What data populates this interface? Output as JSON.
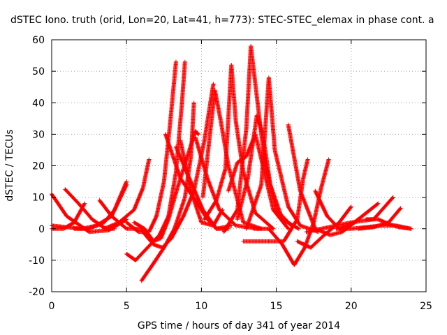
{
  "chart_data": {
    "type": "scatter",
    "title": "dSTEC Iono. truth (orid, Lon=20, Lat=41, h=773): STEC-STEC_elemax in phase cont. a",
    "xlabel": "GPS time / hours of day 341 of year 2014",
    "ylabel": "dSTEC  / TECUs",
    "xlim": [
      0,
      25
    ],
    "ylim": [
      -20,
      60
    ],
    "x_ticks": [
      0,
      5,
      10,
      15,
      20,
      25
    ],
    "x_tick_labels": [
      "0",
      "5",
      "10",
      "15",
      "20",
      "25"
    ],
    "y_ticks": [
      -20,
      -10,
      0,
      10,
      20,
      30,
      40,
      50,
      60
    ],
    "y_tick_labels": [
      "-20",
      "-10",
      "0",
      "10",
      "20",
      "30",
      "40",
      "50",
      "60"
    ],
    "grid": true,
    "marker": "+",
    "series_color": "#ff0000",
    "arcs": [
      {
        "values": [
          [
            0.0,
            11
          ],
          [
            1.0,
            4
          ],
          [
            2.5,
            -1
          ],
          [
            3.8,
            -0.5
          ],
          [
            5.0,
            3
          ]
        ]
      },
      {
        "values": [
          [
            0.0,
            0
          ],
          [
            0.8,
            0
          ],
          [
            1.5,
            2
          ],
          [
            2.2,
            8
          ]
        ]
      },
      {
        "values": [
          [
            0.0,
            1
          ],
          [
            1.0,
            0.5
          ],
          [
            2.0,
            0
          ],
          [
            3.0,
            1
          ],
          [
            4.0,
            4
          ],
          [
            5.0,
            14
          ]
        ]
      },
      {
        "values": [
          [
            0.9,
            12.5
          ],
          [
            1.8,
            8
          ],
          [
            2.7,
            3
          ],
          [
            3.6,
            0
          ],
          [
            4.2,
            0
          ]
        ]
      },
      {
        "values": [
          [
            1.5,
            0
          ],
          [
            2.5,
            0
          ],
          [
            3.5,
            2
          ],
          [
            4.2,
            6
          ],
          [
            5.0,
            15
          ]
        ]
      },
      {
        "values": [
          [
            3.2,
            9
          ],
          [
            4.0,
            4
          ],
          [
            5.0,
            0
          ],
          [
            6.0,
            0
          ]
        ]
      },
      {
        "values": [
          [
            3.5,
            0
          ],
          [
            4.5,
            2
          ],
          [
            5.5,
            6
          ],
          [
            6.1,
            13
          ],
          [
            6.5,
            22
          ]
        ]
      },
      {
        "values": [
          [
            5.0,
            -8
          ],
          [
            5.6,
            -10
          ],
          [
            6.4,
            -6
          ],
          [
            7.2,
            -2
          ],
          [
            7.8,
            4
          ],
          [
            8.3,
            18
          ],
          [
            8.7,
            40
          ],
          [
            8.9,
            53
          ]
        ]
      },
      {
        "values": [
          [
            6.0,
            -16.5
          ],
          [
            6.8,
            -11
          ],
          [
            7.5,
            -6
          ],
          [
            8.2,
            0
          ],
          [
            8.9,
            10
          ],
          [
            9.3,
            23
          ],
          [
            9.5,
            40
          ]
        ]
      },
      {
        "values": [
          [
            5.0,
            2
          ],
          [
            5.8,
            -1
          ],
          [
            6.5,
            -1
          ],
          [
            7.0,
            4
          ],
          [
            7.5,
            15
          ],
          [
            7.9,
            33
          ],
          [
            8.3,
            53
          ]
        ]
      },
      {
        "values": [
          [
            5.5,
            2
          ],
          [
            6.2,
            0
          ],
          [
            6.8,
            -4
          ],
          [
            7.3,
            -3
          ],
          [
            7.8,
            3
          ],
          [
            8.4,
            13
          ],
          [
            9.0,
            22
          ],
          [
            9.6,
            31
          ],
          [
            9.8,
            30
          ]
        ]
      },
      {
        "values": [
          [
            6.0,
            -0.5
          ],
          [
            6.8,
            -5
          ],
          [
            7.4,
            -6
          ],
          [
            8.0,
            -3
          ],
          [
            8.8,
            4
          ],
          [
            9.5,
            12
          ],
          [
            10.2,
            28
          ],
          [
            10.8,
            46
          ]
        ]
      },
      {
        "values": [
          [
            8.6,
            28
          ],
          [
            9.3,
            12
          ],
          [
            10.0,
            2
          ],
          [
            10.8,
            1
          ],
          [
            11.4,
            6
          ]
        ]
      },
      {
        "values": [
          [
            7.6,
            30
          ],
          [
            8.6,
            16
          ],
          [
            9.6,
            9
          ],
          [
            10.4,
            3
          ],
          [
            11.0,
            0
          ],
          [
            11.8,
            0
          ]
        ]
      },
      {
        "values": [
          [
            8.3,
            26
          ],
          [
            9.2,
            16
          ],
          [
            10.1,
            6
          ],
          [
            11.0,
            0
          ],
          [
            12.0,
            1
          ]
        ]
      },
      {
        "values": [
          [
            9.6,
            29
          ],
          [
            10.4,
            16
          ],
          [
            11.2,
            6
          ],
          [
            12.3,
            1
          ],
          [
            13.8,
            0
          ]
        ]
      },
      {
        "values": [
          [
            10.1,
            10
          ],
          [
            10.5,
            27
          ],
          [
            10.9,
            44
          ],
          [
            11.3,
            34
          ],
          [
            11.8,
            20
          ],
          [
            12.8,
            2
          ],
          [
            14.0,
            0
          ]
        ]
      },
      {
        "values": [
          [
            10.2,
            3
          ],
          [
            11.0,
            9
          ],
          [
            11.6,
            19
          ],
          [
            12.0,
            52
          ],
          [
            12.3,
            34
          ],
          [
            12.8,
            18
          ],
          [
            13.6,
            5
          ],
          [
            14.8,
            0
          ]
        ]
      },
      {
        "values": [
          [
            11.5,
            -1
          ],
          [
            12.4,
            6
          ],
          [
            13.0,
            32
          ],
          [
            13.3,
            58
          ],
          [
            13.7,
            42
          ],
          [
            14.2,
            22
          ],
          [
            15.0,
            6
          ],
          [
            16.0,
            1
          ]
        ]
      },
      {
        "values": [
          [
            11.8,
            12
          ],
          [
            12.4,
            21
          ],
          [
            13.0,
            23
          ],
          [
            13.6,
            30
          ],
          [
            14.2,
            18
          ],
          [
            14.8,
            6
          ],
          [
            15.8,
            0
          ]
        ]
      },
      {
        "values": [
          [
            12.4,
            3
          ],
          [
            13.1,
            16
          ],
          [
            13.7,
            36
          ],
          [
            14.1,
            30
          ],
          [
            14.6,
            14
          ],
          [
            15.4,
            3
          ],
          [
            16.5,
            0
          ]
        ]
      },
      {
        "values": [
          [
            13.0,
            0
          ],
          [
            14.0,
            14
          ],
          [
            14.5,
            48
          ],
          [
            14.9,
            25
          ],
          [
            15.8,
            7
          ],
          [
            16.6,
            1
          ],
          [
            17.8,
            -1
          ]
        ]
      },
      {
        "values": [
          [
            13.5,
            0
          ],
          [
            14.5,
            0
          ],
          [
            15.4,
            -5
          ],
          [
            16.2,
            -11.5
          ],
          [
            16.9,
            -6
          ],
          [
            17.5,
            2
          ],
          [
            18.0,
            13
          ],
          [
            18.5,
            22
          ]
        ]
      },
      {
        "values": [
          [
            12.8,
            -4
          ],
          [
            14.0,
            -4
          ],
          [
            15.5,
            -4
          ],
          [
            16.4,
            3
          ],
          [
            16.8,
            16
          ],
          [
            17.1,
            22
          ]
        ]
      },
      {
        "values": [
          [
            15.8,
            33
          ],
          [
            16.6,
            12
          ],
          [
            17.6,
            0
          ],
          [
            18.6,
            -2
          ],
          [
            19.4,
            -1
          ],
          [
            20.5,
            3
          ]
        ]
      },
      {
        "values": [
          [
            16.4,
            -4
          ],
          [
            17.3,
            -6
          ],
          [
            18.2,
            -2
          ],
          [
            19.2,
            2
          ],
          [
            20.0,
            7
          ]
        ]
      },
      {
        "values": [
          [
            17.6,
            12
          ],
          [
            18.4,
            4
          ],
          [
            19.2,
            0
          ],
          [
            20.2,
            2
          ],
          [
            21.0,
            5
          ],
          [
            21.8,
            8
          ]
        ]
      },
      {
        "values": [
          [
            17.0,
            -1
          ],
          [
            18.0,
            0
          ],
          [
            19.0,
            1
          ],
          [
            20.0,
            2
          ],
          [
            21.5,
            3
          ],
          [
            22.8,
            10
          ]
        ]
      },
      {
        "values": [
          [
            19.0,
            0
          ],
          [
            20.0,
            0
          ],
          [
            21.0,
            0.5
          ],
          [
            22.0,
            1
          ],
          [
            23.0,
            1
          ],
          [
            24.0,
            0
          ]
        ]
      },
      {
        "values": [
          [
            20.5,
            0
          ],
          [
            21.5,
            0.5
          ],
          [
            22.5,
            2
          ],
          [
            23.3,
            6.5
          ]
        ]
      },
      {
        "values": [
          [
            21.0,
            3
          ],
          [
            21.8,
            3
          ],
          [
            22.5,
            1.5
          ],
          [
            23.2,
            0.5
          ],
          [
            24.0,
            0
          ]
        ]
      }
    ]
  }
}
